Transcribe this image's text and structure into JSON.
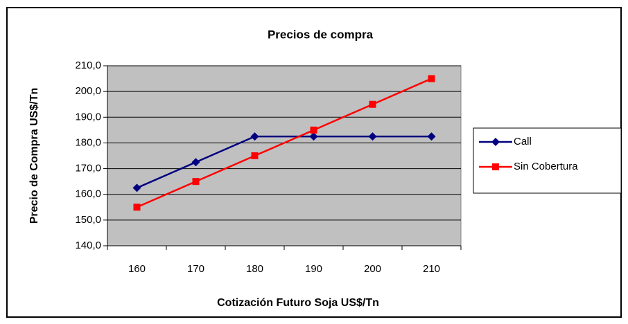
{
  "chart_data": {
    "type": "line",
    "title": "Precios de compra",
    "x_label": "Cotización Futuro Soja US$/Tn",
    "y_label": "Precio de Compra US$/Tn",
    "categories": [
      "160",
      "170",
      "180",
      "190",
      "200",
      "210"
    ],
    "series": [
      {
        "name": "Call",
        "color": "#000080",
        "marker": "diamond",
        "values": [
          162.5,
          172.5,
          182.5,
          182.5,
          182.5,
          182.5
        ]
      },
      {
        "name": "Sin Cobertura",
        "color": "#ff0000",
        "marker": "square",
        "values": [
          155,
          165,
          175,
          185,
          195,
          205
        ]
      }
    ],
    "ylim": [
      140,
      210
    ],
    "yticks": [
      {
        "value": 140,
        "label": "140,0"
      },
      {
        "value": 150,
        "label": "150,0"
      },
      {
        "value": 160,
        "label": "160,0"
      },
      {
        "value": 170,
        "label": "170,0"
      },
      {
        "value": 180,
        "label": "180,0"
      },
      {
        "value": 190,
        "label": "190,0"
      },
      {
        "value": 200,
        "label": "200,0"
      },
      {
        "value": 210,
        "label": "210,0"
      }
    ],
    "grid": true,
    "plot_background": "#c0c0c0",
    "legend": "right"
  }
}
